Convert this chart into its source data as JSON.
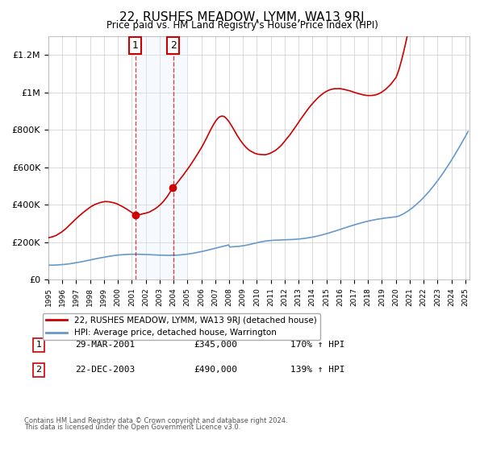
{
  "title": "22, RUSHES MEADOW, LYMM, WA13 9RJ",
  "subtitle": "Price paid vs. HM Land Registry's House Price Index (HPI)",
  "red_label": "22, RUSHES MEADOW, LYMM, WA13 9RJ (detached house)",
  "blue_label": "HPI: Average price, detached house, Warrington",
  "marker1_date": "2001-03-29",
  "marker1_value": 345000,
  "marker1_label": "29-MAR-2001",
  "marker1_text": "£345,000",
  "marker1_hpi": "170% ↑ HPI",
  "marker2_date": "2003-12-22",
  "marker2_value": 490000,
  "marker2_label": "22-DEC-2003",
  "marker2_text": "£490,000",
  "marker2_hpi": "139% ↑ HPI",
  "footer1": "Contains HM Land Registry data © Crown copyright and database right 2024.",
  "footer2": "This data is licensed under the Open Government Licence v3.0.",
  "red_color": "#cc0000",
  "blue_color": "#6699cc",
  "shade_color": "#ddeeff",
  "grid_color": "#cccccc",
  "bg_color": "#ffffff",
  "ylim": [
    0,
    1300000
  ],
  "yticks": [
    0,
    200000,
    400000,
    600000,
    800000,
    1000000,
    1200000
  ],
  "ytick_labels": [
    "£0",
    "£200K",
    "£400K",
    "£600K",
    "£800K",
    "£1M",
    "£1.2M"
  ]
}
